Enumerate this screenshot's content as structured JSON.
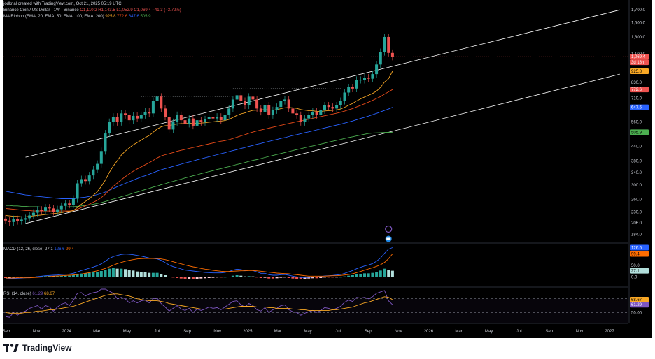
{
  "header": {
    "author_line": "jodkrial created with TradingView.com, Oct 21, 2025 05:19 UTC",
    "symbol_line": "Binance Coin / US Dollar · 1W · Binance",
    "ohlc": "O1,110.2  H1,143.5  L1,052.9  C1,069.4  −41.3 (−3.72%)",
    "ribbon_label": "MA Ribbon (EMA, 20, EMA, 50, EMA, 100, EMA, 200)",
    "ribbon_values": [
      "925.8",
      "772.6",
      "647.6",
      "505.9"
    ],
    "macd_label": "MACD (12, 26, close)",
    "macd_values": [
      "27.1",
      "126.6",
      "99.4"
    ],
    "rsi_label": "RSI (14, close)",
    "rsi_values": [
      "61.29",
      "68.67"
    ]
  },
  "colors": {
    "background": "#000000",
    "up": "#26a69a",
    "down": "#ef5350",
    "ema20": "#f9a825",
    "ema50": "#e64a19",
    "ema100": "#2962ff",
    "ema200": "#4caf50",
    "trendline": "#ffffff",
    "macd_line": "#2962ff",
    "signal_line": "#ff6d00",
    "rsi_line": "#7e57c2",
    "rsi_ma": "#f9a825"
  },
  "chart_data": [
    {
      "type": "candlestick",
      "title": "Binance Coin / US Dollar · 1W · Binance",
      "y_scale": "log",
      "ylim": [
        170,
        1750
      ],
      "y_ticks": [
        "1,700.0",
        "1,500.0",
        "1,300.0",
        "1,100.0",
        "830.0",
        "710.0",
        "560.0",
        "440.0",
        "380.0",
        "340.0",
        "300.0",
        "260.0",
        "230.0",
        "206.0",
        "184.0"
      ],
      "x_ticks": [
        "Sep",
        "Nov",
        "2024",
        "Mar",
        "May",
        "Jul",
        "Sep",
        "Nov",
        "2025",
        "Mar",
        "May",
        "Jul",
        "Sep",
        "Nov",
        "2026",
        "Mar",
        "May",
        "Jul",
        "Sep",
        "Nov",
        "2027"
      ],
      "price_tags": [
        {
          "text": "1,069.4",
          "color": "#ef5350"
        },
        {
          "text": "3d 18h",
          "color": "#ef5350"
        },
        {
          "text": "925.8",
          "color": "#f9a825"
        },
        {
          "text": "772.6",
          "color": "#ef5350"
        },
        {
          "text": "647.6",
          "color": "#2962ff"
        },
        {
          "text": "505.9",
          "color": "#4caf50"
        }
      ],
      "candles_close": [
        211,
        208,
        214,
        210,
        213,
        216,
        222,
        228,
        235,
        232,
        240,
        238,
        230,
        236,
        244,
        250,
        247,
        262,
        305,
        318,
        312,
        330,
        350,
        370,
        420,
        500,
        560,
        590,
        560,
        610,
        600,
        570,
        595,
        580,
        600,
        620,
        610,
        690,
        720,
        640,
        590,
        520,
        560,
        600,
        570,
        550,
        580,
        540,
        570,
        560,
        575,
        590,
        580,
        590,
        570,
        600,
        640,
        700,
        730,
        690,
        660,
        720,
        700,
        640,
        620,
        660,
        600,
        630,
        650,
        690,
        700,
        640,
        610,
        600,
        560,
        580,
        600,
        620,
        600,
        630,
        660,
        650,
        640,
        660,
        690,
        750,
        790,
        780,
        850,
        850,
        870,
        860,
        900,
        990,
        1120,
        1300,
        1110,
        1069.4
      ],
      "ema20": [
        222,
        221,
        220,
        220,
        219,
        219,
        220,
        221,
        222,
        223,
        224,
        225,
        226,
        227,
        228,
        230,
        231,
        233,
        240,
        248,
        255,
        262,
        271,
        281,
        296,
        315,
        340,
        362,
        382,
        403,
        420,
        433,
        447,
        457,
        468,
        480,
        490,
        506,
        522,
        534,
        540,
        541,
        545,
        549,
        551,
        551,
        553,
        552,
        553,
        554,
        556,
        559,
        561,
        564,
        565,
        568,
        575,
        586,
        598,
        607,
        613,
        622,
        629,
        630,
        631,
        634,
        631,
        630,
        633,
        639,
        645,
        646,
        645,
        641,
        634,
        630,
        627,
        626,
        622,
        621,
        625,
        627,
        629,
        632,
        637,
        648,
        661,
        673,
        690,
        704,
        718,
        730,
        743,
        761,
        790,
        832,
        860,
        925.8
      ],
      "ema50": [
        238,
        237,
        236,
        235,
        234,
        233,
        233,
        232,
        232,
        232,
        232,
        232,
        232,
        232,
        232,
        232,
        232,
        233,
        236,
        240,
        244,
        248,
        253,
        258,
        265,
        274,
        285,
        296,
        306,
        316,
        326,
        335,
        344,
        352,
        359,
        367,
        374,
        383,
        392,
        400,
        405,
        409,
        414,
        419,
        423,
        427,
        431,
        435,
        439,
        443,
        447,
        451,
        455,
        459,
        463,
        466,
        470,
        476,
        482,
        488,
        494,
        501,
        507,
        512,
        517,
        522,
        527,
        532,
        537,
        542,
        547,
        552,
        557,
        562,
        566,
        571,
        576,
        581,
        586,
        591,
        596,
        601,
        606,
        611,
        617,
        624,
        632,
        640,
        650,
        660,
        671,
        682,
        694,
        707,
        721,
        738,
        755,
        772.6
      ],
      "ema100": [
        282,
        280,
        278,
        276,
        274,
        272,
        271,
        269,
        268,
        267,
        266,
        265,
        264,
        263,
        262,
        262,
        262,
        262,
        263,
        265,
        266,
        268,
        270,
        273,
        276,
        280,
        285,
        290,
        295,
        300,
        305,
        310,
        315,
        320,
        325,
        329,
        334,
        339,
        344,
        349,
        353,
        357,
        361,
        365,
        369,
        373,
        377,
        381,
        385,
        389,
        393,
        397,
        401,
        405,
        409,
        413,
        418,
        422,
        426,
        431,
        435,
        440,
        444,
        449,
        453,
        458,
        462,
        467,
        471,
        476,
        480,
        485,
        490,
        494,
        499,
        504,
        508,
        513,
        518,
        523,
        528,
        533,
        538,
        543,
        548,
        554,
        560,
        566,
        573,
        580,
        587,
        594,
        602,
        610,
        619,
        628,
        637,
        647.6
      ],
      "ema200": [
        245,
        245,
        244,
        244,
        243,
        243,
        242,
        242,
        242,
        241,
        241,
        241,
        241,
        241,
        241,
        241,
        242,
        242,
        243,
        244,
        245,
        246,
        248,
        250,
        252,
        255,
        258,
        261,
        264,
        267,
        270,
        273,
        277,
        280,
        283,
        287,
        290,
        294,
        297,
        301,
        304,
        308,
        311,
        315,
        318,
        322,
        325,
        329,
        332,
        336,
        339,
        343,
        346,
        350,
        353,
        357,
        360,
        364,
        368,
        371,
        375,
        379,
        383,
        386,
        390,
        394,
        398,
        402,
        406,
        410,
        414,
        418,
        422,
        426,
        430,
        434,
        438,
        442,
        446,
        450,
        454,
        459,
        463,
        467,
        471,
        476,
        480,
        484,
        488,
        492,
        496,
        500,
        502,
        503,
        504,
        505,
        505.5,
        505.9
      ]
    },
    {
      "type": "bar",
      "title": "MACD (12, 26, close)",
      "ylim": [
        -40,
        140
      ],
      "y_ticks": [
        "50.0",
        "0.0"
      ],
      "histogram": [
        -4,
        -3,
        -2,
        -2,
        -1,
        0,
        1,
        2,
        3,
        4,
        4,
        5,
        4,
        4,
        5,
        6,
        6,
        8,
        12,
        15,
        16,
        18,
        20,
        22,
        26,
        32,
        36,
        38,
        36,
        36,
        34,
        30,
        28,
        24,
        22,
        20,
        18,
        18,
        18,
        14,
        8,
        2,
        -2,
        -4,
        -6,
        -8,
        -7,
        -8,
        -7,
        -6,
        -5,
        -4,
        -3,
        -2,
        -2,
        0,
        2,
        6,
        8,
        6,
        3,
        4,
        3,
        -1,
        -4,
        -3,
        -6,
        -6,
        -5,
        -3,
        -2,
        -4,
        -6,
        -7,
        -8,
        -7,
        -6,
        -5,
        -5,
        -4,
        -2,
        -2,
        -2,
        -1,
        0,
        3,
        6,
        8,
        12,
        14,
        16,
        16,
        18,
        22,
        28,
        36,
        30,
        27.1
      ],
      "macd": [
        -8,
        -7,
        -6,
        -5,
        -4,
        -3,
        -2,
        0,
        2,
        4,
        6,
        7,
        8,
        9,
        11,
        12,
        13,
        16,
        22,
        28,
        33,
        38,
        43,
        49,
        57,
        68,
        80,
        88,
        93,
        97,
        99,
        98,
        96,
        93,
        90,
        86,
        82,
        80,
        78,
        72,
        62,
        52,
        45,
        40,
        35,
        30,
        28,
        26,
        24,
        22,
        20,
        19,
        18,
        18,
        18,
        20,
        24,
        30,
        34,
        32,
        28,
        30,
        28,
        22,
        16,
        16,
        10,
        8,
        8,
        10,
        11,
        8,
        4,
        1,
        -2,
        -2,
        -1,
        0,
        1,
        2,
        5,
        6,
        7,
        9,
        11,
        16,
        22,
        28,
        36,
        42,
        48,
        52,
        58,
        68,
        82,
        102,
        120,
        126.6
      ],
      "signal": [
        -4,
        -4,
        -4,
        -3,
        -3,
        -3,
        -3,
        -2,
        -1,
        0,
        1,
        2,
        4,
        5,
        6,
        7,
        8,
        9,
        11,
        13,
        16,
        19,
        23,
        27,
        32,
        37,
        44,
        51,
        58,
        63,
        68,
        72,
        75,
        78,
        79,
        80,
        80,
        80,
        80,
        78,
        75,
        71,
        66,
        61,
        57,
        52,
        48,
        44,
        41,
        37,
        34,
        32,
        29,
        27,
        25,
        24,
        24,
        25,
        26,
        27,
        27,
        28,
        28,
        27,
        25,
        23,
        21,
        19,
        17,
        16,
        15,
        14,
        12,
        10,
        8,
        6,
        4,
        4,
        4,
        4,
        4,
        5,
        6,
        6,
        7,
        9,
        11,
        14,
        19,
        24,
        30,
        35,
        40,
        46,
        53,
        63,
        79,
        99.4
      ]
    },
    {
      "type": "line",
      "title": "RSI (14, close)",
      "ylim": [
        35,
        85
      ],
      "y_ticks": [
        "50.00"
      ],
      "rsi": [
        44,
        43,
        50,
        46,
        50,
        52,
        56,
        58,
        60,
        55,
        60,
        58,
        52,
        58,
        62,
        64,
        60,
        68,
        78,
        79,
        74,
        77,
        79,
        80,
        84,
        84,
        81,
        78,
        70,
        72,
        70,
        64,
        67,
        64,
        67,
        68,
        64,
        70,
        71,
        63,
        58,
        52,
        56,
        60,
        55,
        53,
        56,
        50,
        55,
        53,
        55,
        58,
        56,
        57,
        54,
        58,
        62,
        66,
        67,
        61,
        58,
        63,
        60,
        54,
        52,
        57,
        50,
        54,
        56,
        60,
        61,
        54,
        51,
        50,
        46,
        49,
        51,
        53,
        50,
        53,
        57,
        56,
        54,
        56,
        59,
        65,
        68,
        66,
        72,
        71,
        72,
        70,
        73,
        78,
        80,
        82,
        67,
        61.29
      ],
      "rsi_ma": [
        50,
        49,
        49,
        49,
        49,
        50,
        50,
        51,
        52,
        52,
        53,
        54,
        54,
        55,
        56,
        57,
        58,
        59,
        61,
        63,
        65,
        67,
        69,
        71,
        73,
        75,
        76,
        77,
        77,
        76,
        75,
        74,
        72,
        70,
        69,
        68,
        67,
        67,
        67,
        66,
        65,
        63,
        62,
        61,
        60,
        59,
        58,
        57,
        56,
        55,
        55,
        55,
        55,
        55,
        55,
        55,
        56,
        57,
        58,
        59,
        59,
        59,
        59,
        58,
        58,
        58,
        57,
        57,
        56,
        56,
        56,
        56,
        55,
        55,
        54,
        54,
        53,
        53,
        53,
        53,
        53,
        53,
        54,
        54,
        55,
        56,
        57,
        58,
        60,
        62,
        64,
        65,
        67,
        69,
        71,
        73,
        72,
        68.67
      ]
    }
  ],
  "footer": {
    "logo_text": "TradingView"
  }
}
